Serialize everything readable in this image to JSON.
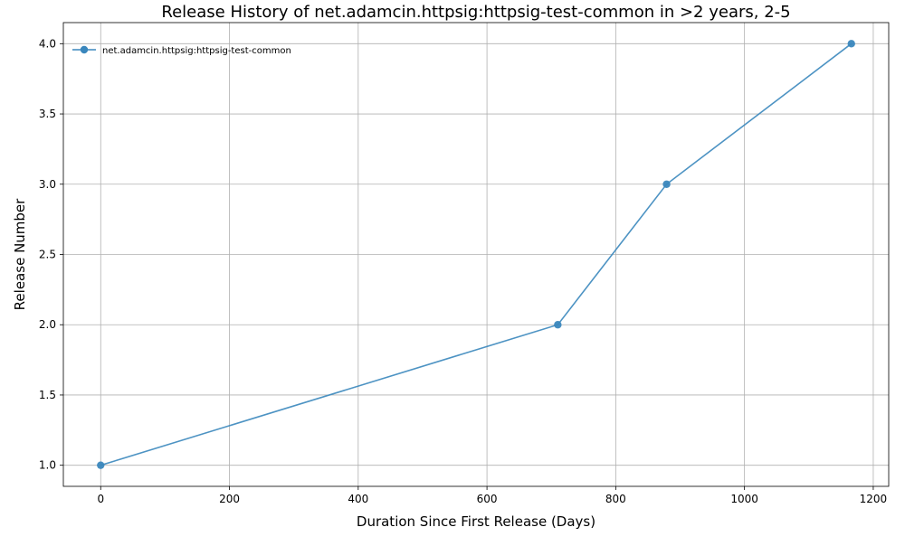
{
  "chart_data": {
    "type": "line",
    "title": "Release History of net.adamcin.httpsig:httpsig-test-common in >2 years, 2-5",
    "xlabel": "Duration Since First Release (Days)",
    "ylabel": "Release Number",
    "xlim": [
      -58,
      1224
    ],
    "ylim": [
      0.85,
      4.15
    ],
    "xticks": [
      0,
      200,
      400,
      600,
      800,
      1000,
      1200
    ],
    "yticks": [
      1.0,
      1.5,
      2.0,
      2.5,
      3.0,
      3.5,
      4.0
    ],
    "xtick_labels": [
      "0",
      "200",
      "400",
      "600",
      "800",
      "1000",
      "1200"
    ],
    "ytick_labels": [
      "1.0",
      "1.5",
      "2.0",
      "2.5",
      "3.0",
      "3.5",
      "4.0"
    ],
    "grid": true,
    "legend": "top-left",
    "series": [
      {
        "name": "net.adamcin.httpsig:httpsig-test-common",
        "color": "#3a87bd",
        "marker": "circle",
        "x": [
          0,
          710,
          879,
          1166
        ],
        "y": [
          1,
          2,
          3,
          4
        ]
      }
    ]
  }
}
